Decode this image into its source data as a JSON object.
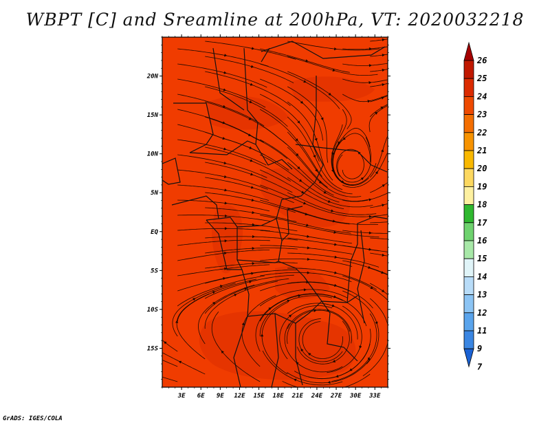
{
  "title": "WBPT [C] and Sreamline at 200hPa, VT: 2020032218",
  "credit": "GrADS: IGES/COLA",
  "lat_labels": [
    "20N",
    "15N",
    "10N",
    "5N",
    "EQ",
    "5S",
    "10S",
    "15S"
  ],
  "lat_values": [
    20,
    15,
    10,
    5,
    0,
    -5,
    -10,
    -15
  ],
  "lon_labels": [
    "3E",
    "6E",
    "9E",
    "12E",
    "15E",
    "18E",
    "21E",
    "24E",
    "27E",
    "30E",
    "33E"
  ],
  "lon_values": [
    3,
    6,
    9,
    12,
    15,
    18,
    21,
    24,
    27,
    30,
    33
  ],
  "lon_range": [
    0,
    35
  ],
  "lat_range": [
    -20,
    25
  ],
  "colorbar": {
    "labels": [
      "26",
      "25",
      "24",
      "23",
      "22",
      "21",
      "20",
      "19",
      "18",
      "17",
      "16",
      "15",
      "14",
      "13",
      "12",
      "11",
      "9",
      "7"
    ],
    "colors": [
      "#a50000",
      "#c01800",
      "#db2b00",
      "#ee4a00",
      "#f46e00",
      "#f79300",
      "#f9b800",
      "#fcd860",
      "#fdf0a0",
      "#2fb82f",
      "#6ed26e",
      "#a8e8a8",
      "#e0f4f8",
      "#b8dcf8",
      "#8cc4f4",
      "#5aa4ec",
      "#3a86e2",
      "#1a62d4"
    ]
  },
  "field": {
    "dominant_color": "#f03c00",
    "dark_color": "#dd2e00"
  }
}
